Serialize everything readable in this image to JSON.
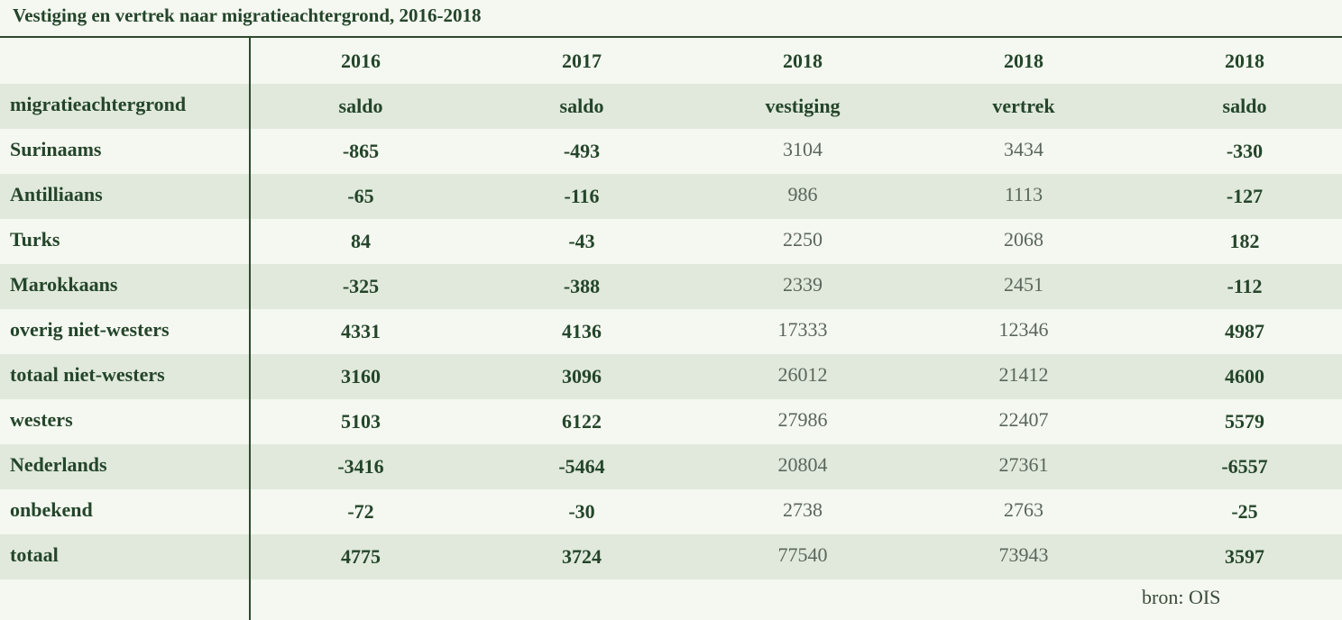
{
  "title": "Vestiging en vertrek naar migratieachtergrond, 2016-2018",
  "source": "bron: OIS",
  "chart_data": {
    "type": "table",
    "title": "Vestiging en vertrek naar migratieachtergrond, 2016-2018",
    "row_header": "migratieachtergrond",
    "columns": [
      {
        "year": "2016",
        "measure": "saldo"
      },
      {
        "year": "2017",
        "measure": "saldo"
      },
      {
        "year": "2018",
        "measure": "vestiging"
      },
      {
        "year": "2018",
        "measure": "vertrek"
      },
      {
        "year": "2018",
        "measure": "saldo"
      }
    ],
    "rows": [
      {
        "label": "Surinaams",
        "values": [
          "-865",
          "-493",
          "3104",
          "3434",
          "-330"
        ]
      },
      {
        "label": "Antilliaans",
        "values": [
          "-65",
          "-116",
          "986",
          "1113",
          "-127"
        ]
      },
      {
        "label": "Turks",
        "values": [
          "84",
          "-43",
          "2250",
          "2068",
          "182"
        ]
      },
      {
        "label": "Marokkaans",
        "values": [
          "-325",
          "-388",
          "2339",
          "2451",
          "-112"
        ]
      },
      {
        "label": "overig niet-westers",
        "values": [
          "4331",
          "4136",
          "17333",
          "12346",
          "4987"
        ]
      },
      {
        "label": "totaal niet-westers",
        "values": [
          "3160",
          "3096",
          "26012",
          "21412",
          "4600"
        ]
      },
      {
        "label": "westers",
        "values": [
          "5103",
          "6122",
          "27986",
          "22407",
          "5579"
        ]
      },
      {
        "label": "Nederlands",
        "values": [
          "-3416",
          "-5464",
          "20804",
          "27361",
          "-6557"
        ]
      },
      {
        "label": "onbekend",
        "values": [
          "-72",
          "-30",
          "2738",
          "2763",
          "-25"
        ]
      },
      {
        "label": "totaal",
        "values": [
          "4775",
          "3724",
          "77540",
          "73943",
          "3597"
        ]
      }
    ],
    "emphasized_columns": [
      true,
      true,
      false,
      false,
      true
    ],
    "colors": {
      "background": "#f4f8f0",
      "stripe": "#e0e9dc",
      "rule": "#2f4a2f",
      "text": "#24452a",
      "light_text": "#5b665b"
    }
  }
}
